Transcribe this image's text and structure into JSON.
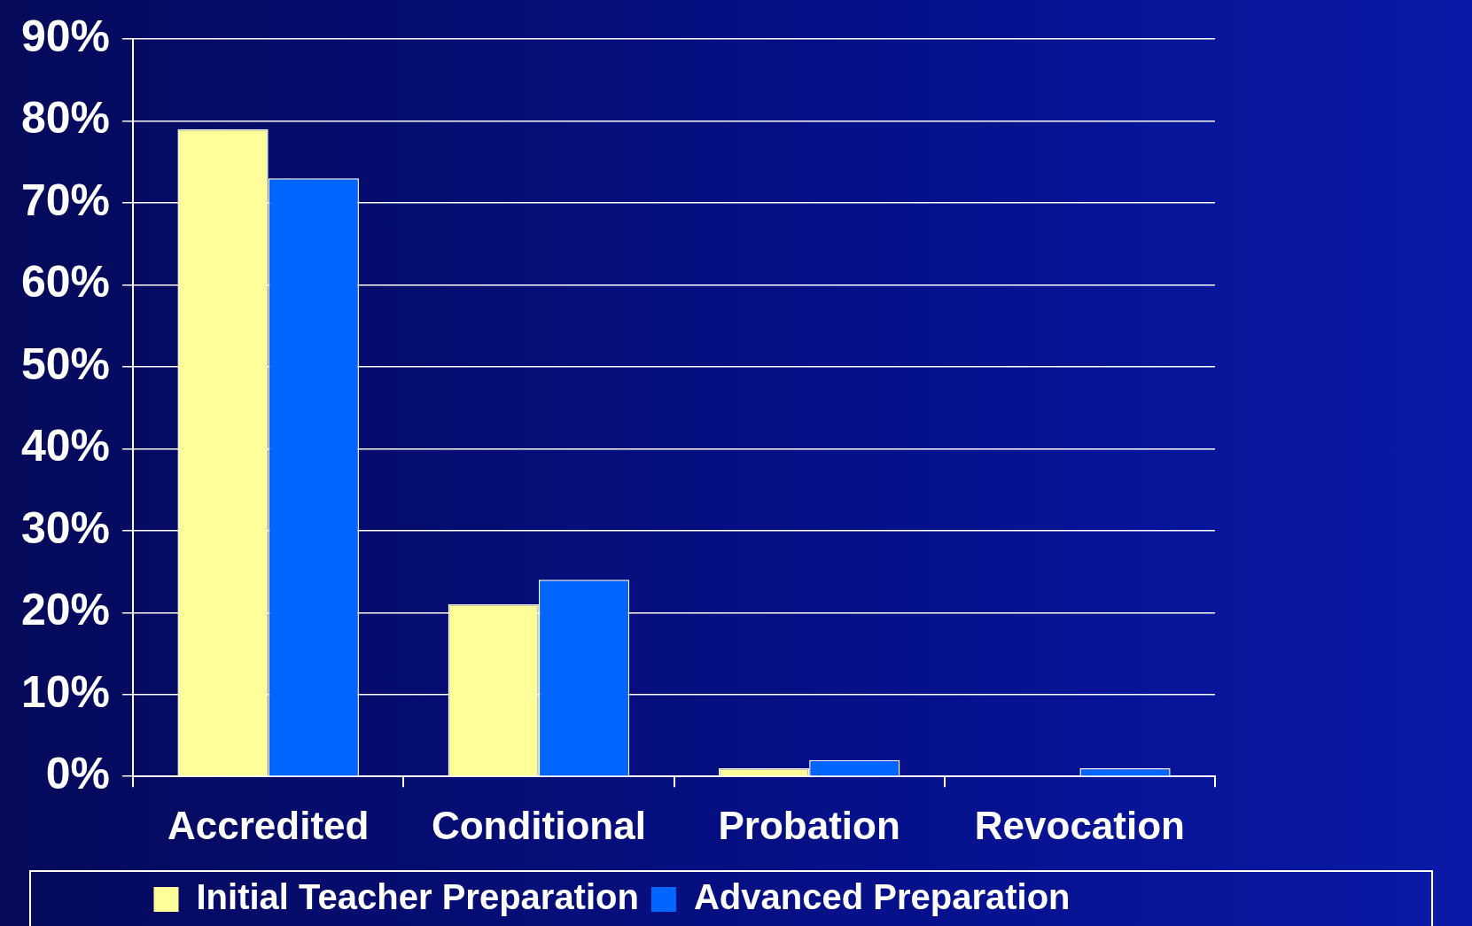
{
  "chart_data": {
    "type": "bar",
    "categories": [
      "Accredited",
      "Conditional",
      "Probation",
      "Revocation"
    ],
    "series": [
      {
        "name": "Initial Teacher Preparation",
        "color": "#ffff99",
        "values": [
          79,
          21,
          1,
          0
        ]
      },
      {
        "name": "Advanced Preparation",
        "color": "#0066ff",
        "values": [
          73,
          24,
          2,
          1
        ]
      }
    ],
    "ylim": [
      0,
      90
    ],
    "yticks": [
      {
        "value": 0,
        "label": "0%"
      },
      {
        "value": 10,
        "label": "10%"
      },
      {
        "value": 20,
        "label": "20%"
      },
      {
        "value": 30,
        "label": "30%"
      },
      {
        "value": 40,
        "label": "40%"
      },
      {
        "value": 50,
        "label": "50%"
      },
      {
        "value": 60,
        "label": "60%"
      },
      {
        "value": 70,
        "label": "70%"
      },
      {
        "value": 80,
        "label": "80%"
      },
      {
        "value": 90,
        "label": "90%"
      }
    ],
    "grid": "y",
    "legend": "bottom"
  }
}
